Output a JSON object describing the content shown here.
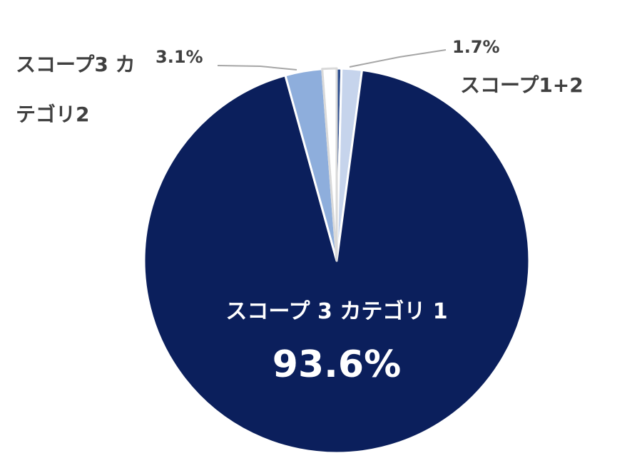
{
  "chart_data": {
    "type": "pie",
    "categories": [
      null,
      "スコープ1+2",
      "スコープ 3 カテゴリ 1",
      "スコープ3 カテゴリ2",
      null
    ],
    "values": [
      0.4,
      1.7,
      93.6,
      3.1,
      1.2
    ],
    "value_labels": [
      null,
      "1.7%",
      "93.6%",
      "3.1%",
      null
    ],
    "colors": [
      "#2f4f8f",
      "#c6d4ec",
      "#0b1f5c",
      "#8eaedc",
      "#ffffff"
    ]
  }
}
